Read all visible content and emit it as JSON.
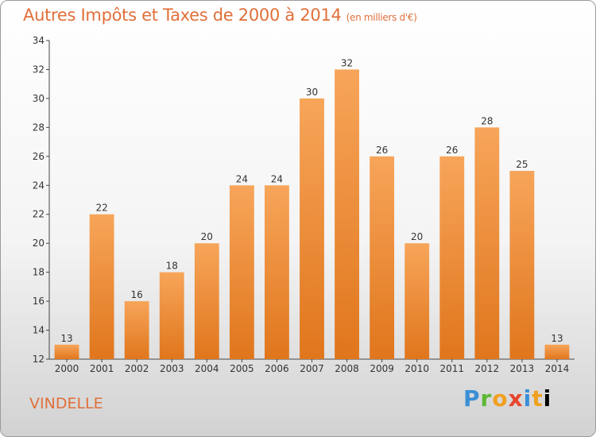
{
  "title": "Autres Impôts et Taxes de 2000 à 2014",
  "subtitle": "(en milliers d'€)",
  "commune": "VINDELLE",
  "logo": [
    "P",
    "r",
    "o",
    "x",
    "i",
    "t",
    "i"
  ],
  "colors": {
    "bar_top": "#f7a55a",
    "bar_bottom": "#e0761c",
    "title": "#e0703a"
  },
  "chart_data": {
    "type": "bar",
    "title": "Autres Impôts et Taxes de 2000 à 2014",
    "subtitle": "(en milliers d'€)",
    "xlabel": "",
    "ylabel": "",
    "categories": [
      "2000",
      "2001",
      "2002",
      "2003",
      "2004",
      "2005",
      "2006",
      "2007",
      "2008",
      "2009",
      "2010",
      "2011",
      "2012",
      "2013",
      "2014"
    ],
    "values": [
      13,
      22,
      16,
      18,
      20,
      24,
      24,
      30,
      32,
      26,
      20,
      26,
      28,
      25,
      13
    ],
    "ylim": [
      12,
      34
    ],
    "yticks": [
      12,
      14,
      16,
      18,
      20,
      22,
      24,
      26,
      28,
      30,
      32,
      34
    ],
    "grid": false,
    "legend": "none"
  }
}
